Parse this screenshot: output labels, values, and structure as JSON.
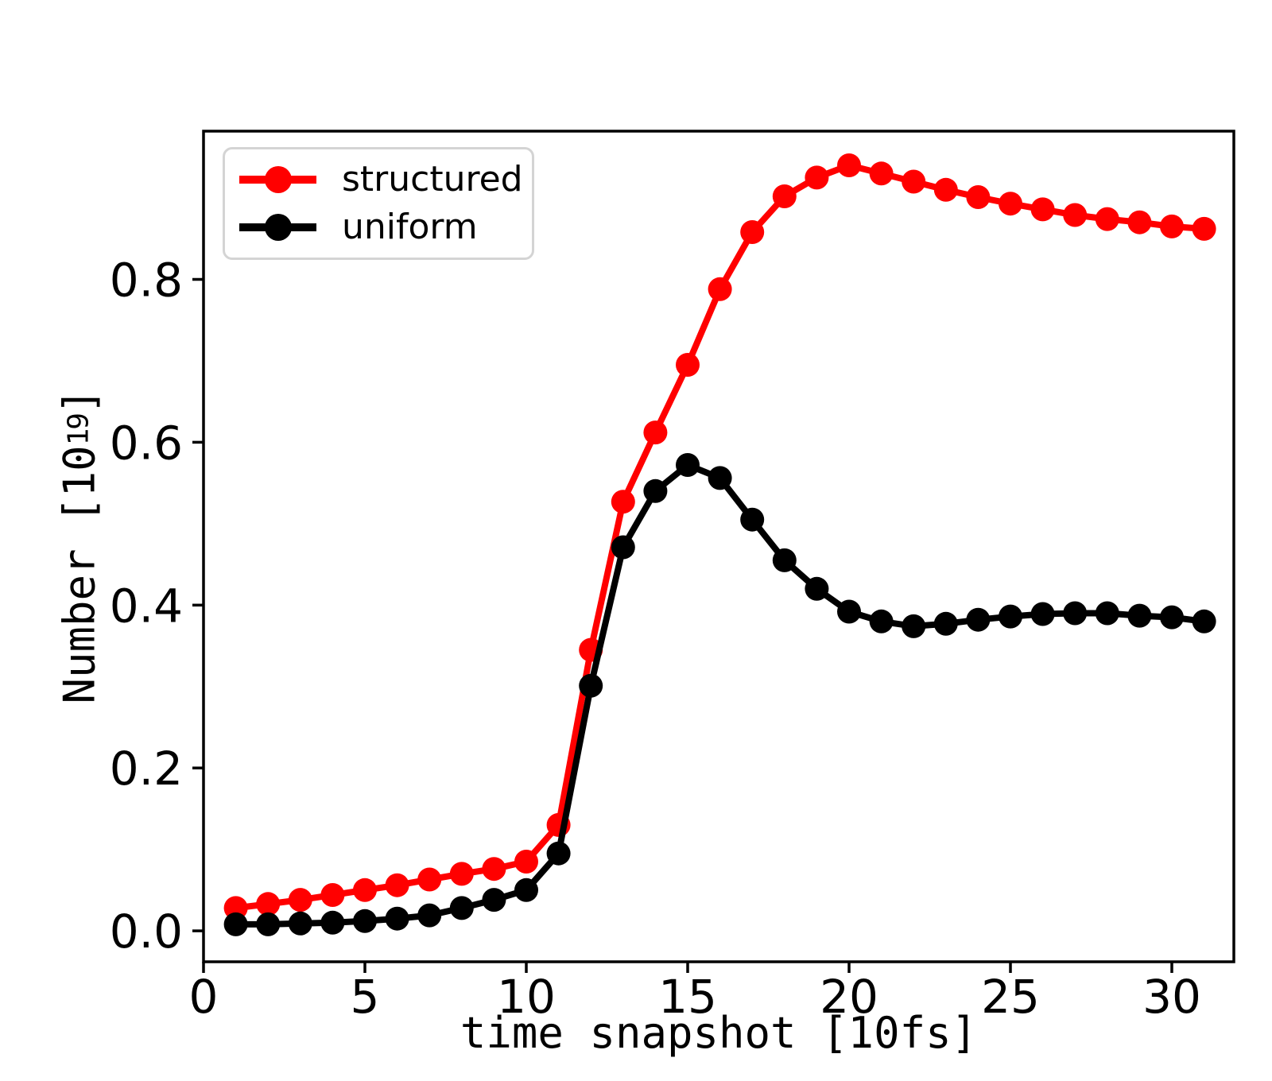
{
  "chart_data": {
    "type": "line",
    "title": "",
    "xlabel": "time snapshot [10fs]",
    "ylabel": "Number [10^19]",
    "ylabel_parts": {
      "prefix": "Number [10",
      "exponent": "19",
      "suffix": "]"
    },
    "x": [
      1,
      2,
      3,
      4,
      5,
      6,
      7,
      8,
      9,
      10,
      11,
      12,
      13,
      14,
      15,
      16,
      17,
      18,
      19,
      20,
      21,
      22,
      23,
      24,
      25,
      26,
      27,
      28,
      29,
      30,
      31
    ],
    "series": [
      {
        "name": "structured",
        "color": "#ff0000",
        "values": [
          0.028,
          0.033,
          0.038,
          0.044,
          0.05,
          0.056,
          0.063,
          0.07,
          0.076,
          0.085,
          0.13,
          0.345,
          0.527,
          0.612,
          0.695,
          0.788,
          0.858,
          0.902,
          0.925,
          0.94,
          0.93,
          0.92,
          0.91,
          0.901,
          0.893,
          0.886,
          0.879,
          0.874,
          0.87,
          0.865,
          0.862
        ]
      },
      {
        "name": "uniform",
        "color": "#000000",
        "values": [
          0.008,
          0.008,
          0.009,
          0.01,
          0.012,
          0.015,
          0.019,
          0.028,
          0.038,
          0.05,
          0.095,
          0.301,
          0.471,
          0.54,
          0.572,
          0.556,
          0.505,
          0.455,
          0.42,
          0.392,
          0.38,
          0.374,
          0.377,
          0.382,
          0.386,
          0.389,
          0.39,
          0.39,
          0.387,
          0.385,
          0.38
        ]
      }
    ],
    "xticks": [
      0,
      5,
      10,
      15,
      20,
      25,
      30
    ],
    "xtick_labels": [
      "0",
      "5",
      "10",
      "15",
      "20",
      "25",
      "30"
    ],
    "yticks": [
      0.0,
      0.2,
      0.4,
      0.6,
      0.8
    ],
    "ytick_labels": [
      "0.0",
      "0.2",
      "0.4",
      "0.6",
      "0.8"
    ],
    "xlim": [
      0,
      31.92
    ],
    "ylim": [
      -0.038,
      0.982
    ],
    "grid": false,
    "legend_position": "upper left",
    "marker": "circle"
  }
}
